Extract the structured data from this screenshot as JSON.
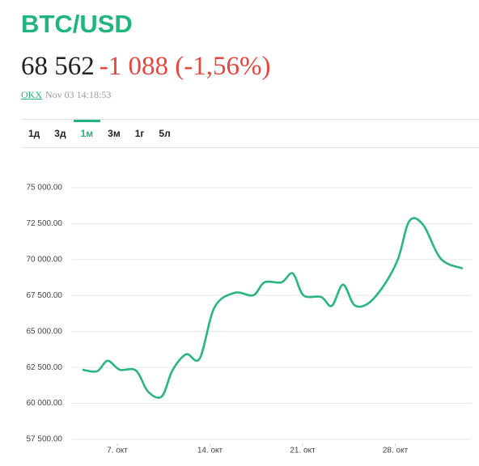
{
  "header": {
    "title": "BTC/USD",
    "price": "68 562",
    "change": "-1 088 (-1,56%)",
    "source": "OKX",
    "timestamp": "Nov 03 14:18:53"
  },
  "tabs": [
    "1д",
    "3д",
    "1м",
    "3м",
    "1г",
    "5л"
  ],
  "active_tab": "1м",
  "chart_data": {
    "type": "line",
    "x": [
      4.37,
      5.47,
      6.27,
      7.18,
      8.41,
      9.32,
      10.36,
      11.16,
      12.2,
      13.23,
      14.34,
      15.86,
      17.27,
      18.12,
      19.41,
      20.26,
      21.06,
      22.4,
      23.2,
      24.05,
      24.91,
      25.95,
      27.17,
      28.21,
      29.07,
      30.11,
      31.45,
      33.1
    ],
    "series": [
      {
        "color": "#2bb57f",
        "values": [
          62340,
          62230,
          62960,
          62340,
          62280,
          60820,
          60480,
          62280,
          63410,
          63130,
          66670,
          67690,
          67520,
          68420,
          68420,
          69040,
          67520,
          67400,
          66780,
          68250,
          66840,
          66950,
          68250,
          70050,
          72690,
          72410,
          70050,
          69380
        ]
      }
    ],
    "xlim": [
      3.8,
      34
    ],
    "xticks": [
      {
        "value": 7,
        "label": "7. окт"
      },
      {
        "value": 14,
        "label": "14. окт"
      },
      {
        "value": 21,
        "label": "21. окт"
      },
      {
        "value": 28,
        "label": "28. окт"
      }
    ],
    "ylim": [
      57200,
      75700
    ],
    "yticks": [
      {
        "value": 57500,
        "label": "57 500.00"
      },
      {
        "value": 60000,
        "label": "60 000.00"
      },
      {
        "value": 62500,
        "label": "62 500.00"
      },
      {
        "value": 65000,
        "label": "65 000.00"
      },
      {
        "value": 67500,
        "label": "67 500.00"
      },
      {
        "value": 70000,
        "label": "70 000.00"
      },
      {
        "value": 72500,
        "label": "72 500.00"
      },
      {
        "value": 75000,
        "label": "75 000.00"
      }
    ],
    "grid": true
  }
}
